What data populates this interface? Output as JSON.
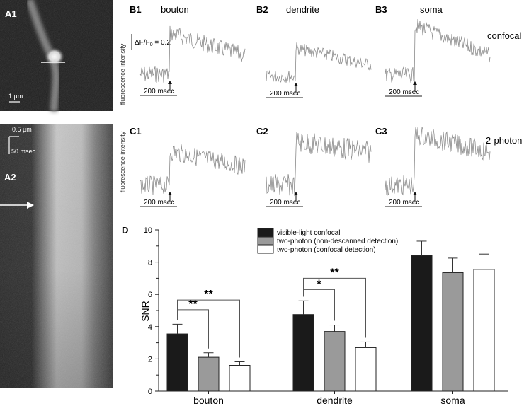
{
  "panels": {
    "A1": {
      "label": "A1",
      "scalebar": "1 µm"
    },
    "A2": {
      "label": "A2",
      "scale_space": "0.5 µm",
      "scale_time": "50 msec"
    },
    "B1": {
      "label": "B1",
      "title": "bouton"
    },
    "B2": {
      "label": "B2",
      "title": "dendrite"
    },
    "B3": {
      "label": "B3",
      "title": "soma"
    },
    "C1": {
      "label": "C1"
    },
    "C2": {
      "label": "C2"
    },
    "C3": {
      "label": "C3"
    },
    "D": {
      "label": "D"
    }
  },
  "rows": {
    "confocal_label": "confocal",
    "twophoton_label": "2-photon",
    "ylabel": "fluorescence intensity",
    "time_scale": "200 msec",
    "amplitude_scale_prefix": "ΔF/F",
    "amplitude_scale_sub": "0",
    "amplitude_scale_value": " = 0.2"
  },
  "chart_data": {
    "type": "bar",
    "categories": [
      "bouton",
      "dendrite",
      "soma"
    ],
    "series": [
      {
        "name": "visible-light confocal",
        "values": [
          3.55,
          4.75,
          8.4
        ],
        "errors": [
          0.6,
          0.85,
          0.9
        ],
        "color": "#1a1a1a"
      },
      {
        "name": "two-photon (non-descanned detection)",
        "values": [
          2.1,
          3.7,
          7.35
        ],
        "errors": [
          0.28,
          0.4,
          0.9
        ],
        "color": "#9a9a9a"
      },
      {
        "name": "two-photon (confocal detection)",
        "values": [
          1.6,
          2.7,
          7.55
        ],
        "errors": [
          0.22,
          0.35,
          0.95
        ],
        "color": "#ffffff"
      }
    ],
    "ylabel": "SNR",
    "ylim": [
      0,
      10
    ],
    "yticks": [
      0,
      2,
      4,
      6,
      8,
      10
    ],
    "significance": [
      {
        "category": "bouton",
        "compare": "two-photon (non-descanned detection)",
        "label": "**"
      },
      {
        "category": "bouton",
        "compare": "two-photon (confocal detection)",
        "label": "**"
      },
      {
        "category": "dendrite",
        "compare": "two-photon (non-descanned detection)",
        "label": "*"
      },
      {
        "category": "dendrite",
        "compare": "two-photon (confocal detection)",
        "label": "**"
      }
    ],
    "legend_position": "top-left"
  }
}
